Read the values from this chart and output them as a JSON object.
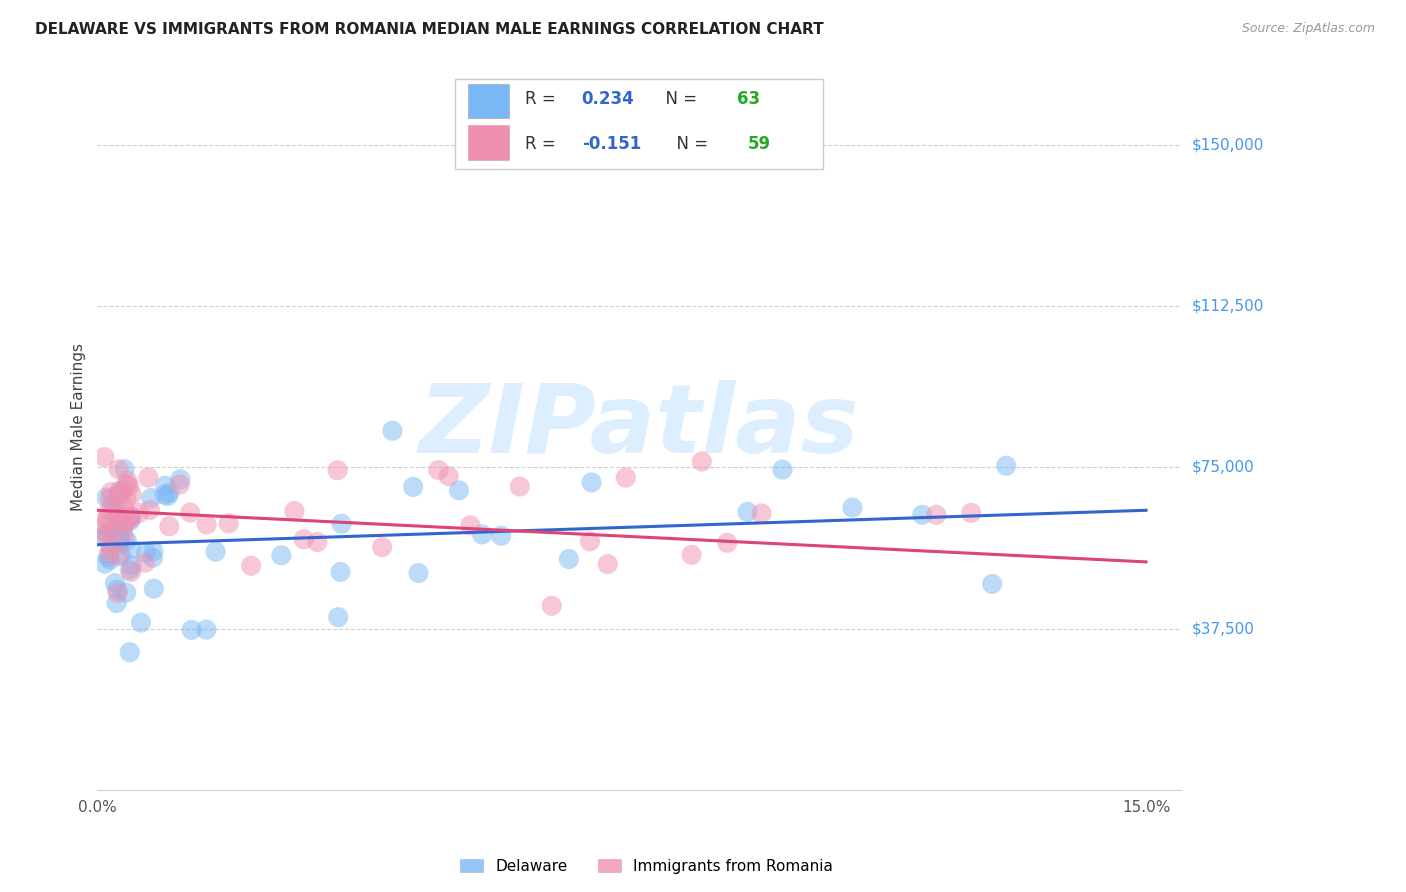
{
  "title": "DELAWARE VS IMMIGRANTS FROM ROMANIA MEDIAN MALE EARNINGS CORRELATION CHART",
  "source": "Source: ZipAtlas.com",
  "ylabel": "Median Male Earnings",
  "xlim": [
    0.0,
    0.155
  ],
  "ylim": [
    0,
    168750
  ],
  "ytick_vals": [
    37500,
    75000,
    112500,
    150000
  ],
  "ytick_labels": [
    "$37,500",
    "$75,000",
    "$112,500",
    "$150,000"
  ],
  "series1_label": "Delaware",
  "series1_color": "#7ab8f5",
  "series1_R": 0.234,
  "series1_N": 63,
  "series2_label": "Immigrants from Romania",
  "series2_color": "#f090b0",
  "series2_R": -0.151,
  "series2_N": 59,
  "background_color": "#ffffff",
  "grid_color": "#d0d0d0",
  "title_color": "#222222",
  "ytick_color": "#4499ee",
  "watermark": "ZIPatlas",
  "watermark_color": "#ddeeff",
  "trend1_color": "#3366cc",
  "trend2_color": "#dd4477",
  "legend_R_color": "#3366cc",
  "legend_N_color": "#22aa22"
}
